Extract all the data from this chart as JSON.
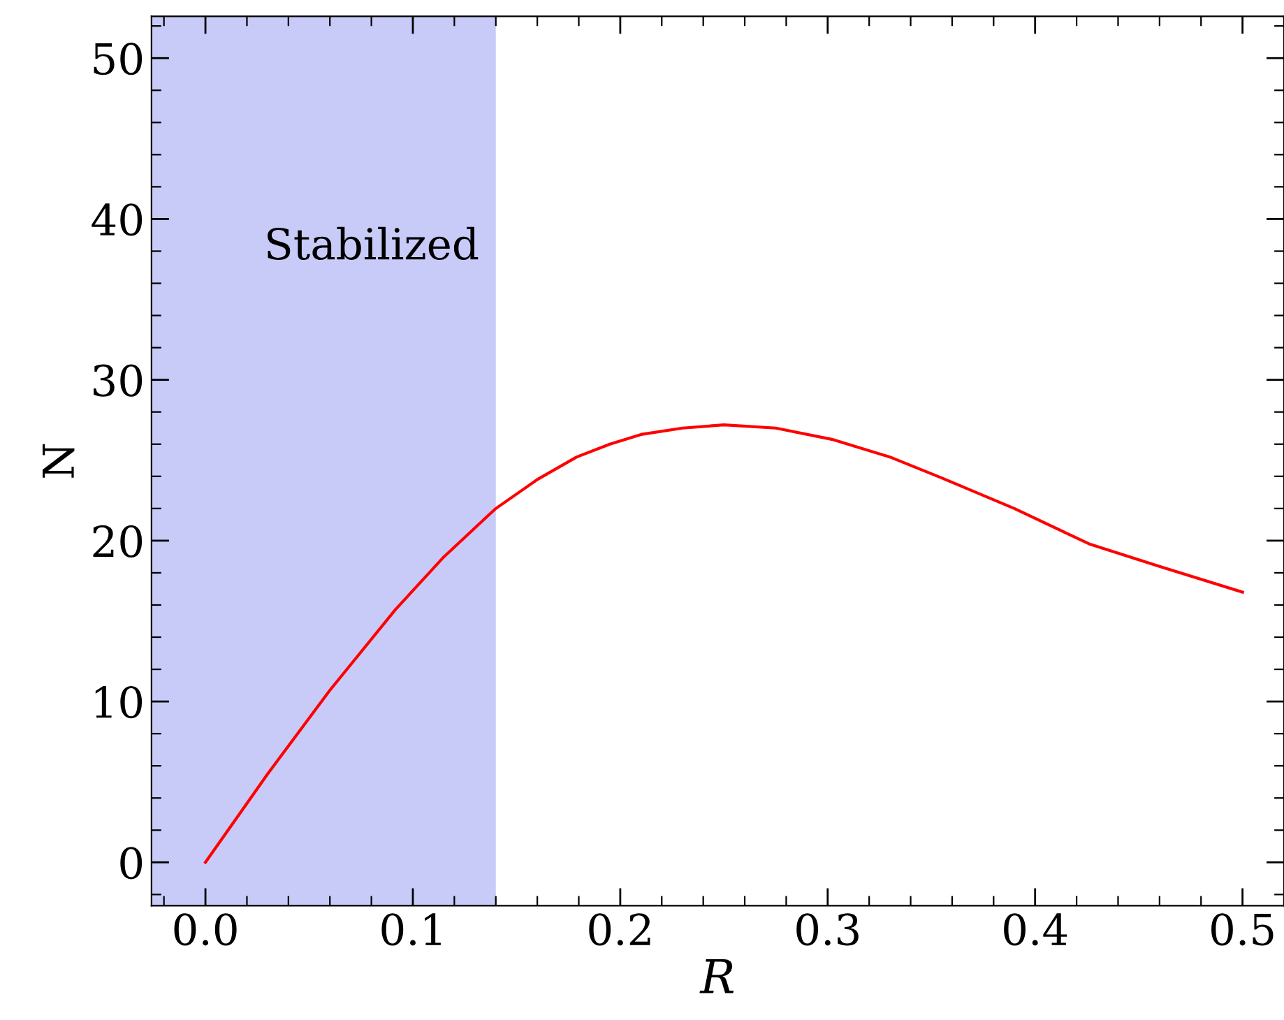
{
  "chart_data": {
    "type": "line",
    "xlabel": "R",
    "ylabel": "N",
    "x": [
      0.0,
      0.03,
      0.06,
      0.0915,
      0.115,
      0.14,
      0.16,
      0.179,
      0.195,
      0.21,
      0.23,
      0.25,
      0.275,
      0.302,
      0.33,
      0.355,
      0.39,
      0.426,
      0.46,
      0.5
    ],
    "series": [
      {
        "color": "#ff0000",
        "values": [
          0.0,
          5.5,
          10.7,
          15.7,
          19.0,
          22.0,
          23.8,
          25.2,
          26.0,
          26.6,
          27.0,
          27.2,
          27.0,
          26.3,
          25.2,
          23.9,
          22.0,
          19.8,
          18.4,
          16.8
        ]
      }
    ],
    "xlim": [
      -0.026,
      0.52
    ],
    "xticks": [
      {
        "value": 0.0,
        "label": "0.0"
      },
      0.1,
      0.2,
      0.3,
      0.4,
      0.5
    ],
    "ylim": [
      -2.7,
      52.6
    ],
    "yticks": [
      0,
      10,
      20,
      30,
      40,
      50
    ],
    "bands": [
      {
        "axis": "x",
        "from": -0.026,
        "to": 0.14,
        "label": "Stabilized",
        "color": "#c8cbf8"
      }
    ],
    "grid": false
  }
}
